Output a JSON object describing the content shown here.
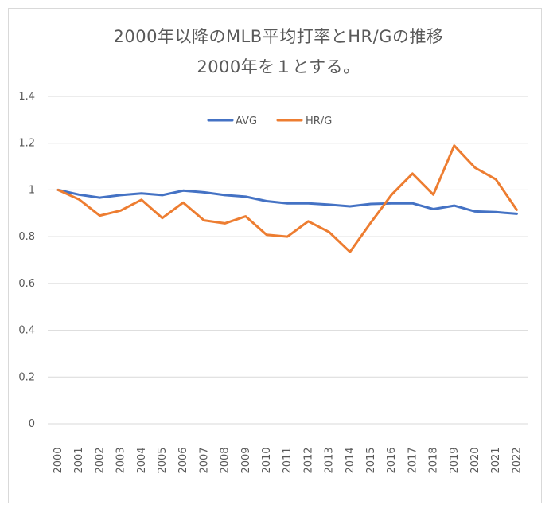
{
  "chart_data": {
    "type": "line",
    "title": "2000年以降のMLB平均打率とHR/Gの推移",
    "subtitle": "2000年を１とする。",
    "xlabel": "",
    "ylabel": "",
    "ylim": [
      0,
      1.4
    ],
    "y_ticks": [
      "0",
      "0.2",
      "0.4",
      "0.6",
      "0.8",
      "1",
      "1.2",
      "1.4"
    ],
    "categories": [
      "2000",
      "2001",
      "2002",
      "2003",
      "2004",
      "2005",
      "2006",
      "2007",
      "2008",
      "2009",
      "2010",
      "2011",
      "2012",
      "2013",
      "2014",
      "2015",
      "2016",
      "2017",
      "2018",
      "2019",
      "2020",
      "2021",
      "2022"
    ],
    "grid": "horizontal",
    "legend": "top",
    "series": [
      {
        "name": "AVG",
        "color": "#4472C4",
        "values": [
          1.0,
          0.98,
          0.967,
          0.978,
          0.985,
          0.978,
          0.997,
          0.99,
          0.978,
          0.971,
          0.952,
          0.943,
          0.943,
          0.937,
          0.93,
          0.94,
          0.943,
          0.943,
          0.918,
          0.933,
          0.908,
          0.905,
          0.898
        ]
      },
      {
        "name": "HR/G",
        "color": "#ED7D31",
        "values": [
          1.0,
          0.96,
          0.89,
          0.912,
          0.958,
          0.88,
          0.946,
          0.87,
          0.857,
          0.887,
          0.808,
          0.8,
          0.866,
          0.82,
          0.735,
          0.86,
          0.98,
          1.07,
          0.98,
          1.19,
          1.095,
          1.045,
          0.915
        ]
      }
    ]
  }
}
